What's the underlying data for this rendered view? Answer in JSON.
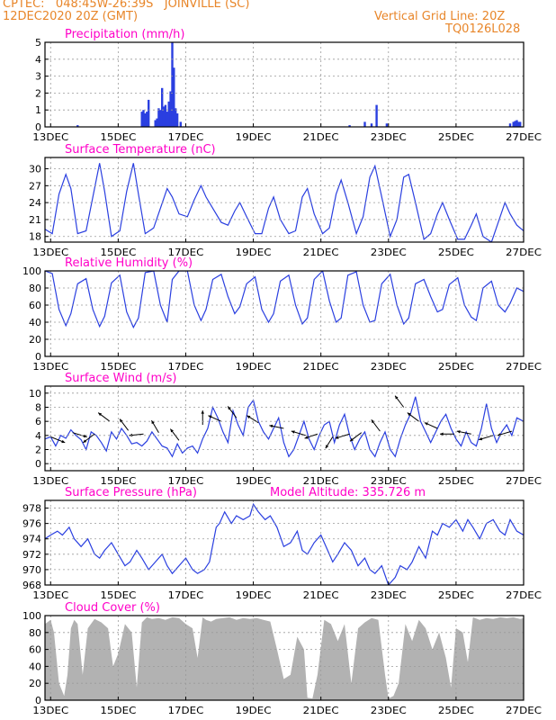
{
  "header": {
    "line1_left": "CPTEC:   048:45W-26:39S   JOINVILLE (SC)",
    "line2_left": "12DEC2020 20Z (GMT)",
    "line1_right": "Vertical Grid Line: 20Z",
    "line2_right": "TQ0126L028",
    "color": "#e8862a"
  },
  "colors": {
    "title": "#ff00c8",
    "series": "#2a3fe0",
    "cloud": "#b2b2b2",
    "grid": "#9a9a9a",
    "arrow": "#000000"
  },
  "chart_data": [
    {
      "id": "precip",
      "type": "bar",
      "title": "Precipitation (mm/h)",
      "xlim": [
        12.8333,
        27.0
      ],
      "xticks": [
        13,
        15,
        17,
        19,
        21,
        23,
        25,
        27
      ],
      "xtick_labels": [
        "13DEC",
        "15DEC",
        "17DEC",
        "19DEC",
        "21DEC",
        "23DEC",
        "25DEC",
        "27DEC"
      ],
      "ylim": [
        0,
        5
      ],
      "yticks": [
        0,
        1,
        2,
        3,
        4,
        5
      ],
      "ytick_labels": [
        "0",
        "1",
        "2",
        "3",
        "4",
        "5"
      ],
      "x": [
        13.8,
        15.7,
        15.75,
        15.8,
        15.85,
        15.9,
        16.1,
        16.15,
        16.2,
        16.25,
        16.3,
        16.35,
        16.4,
        16.45,
        16.5,
        16.55,
        16.6,
        16.65,
        16.7,
        16.75,
        16.85,
        21.85,
        22.3,
        22.5,
        22.65,
        22.95,
        26.6,
        26.7,
        26.75,
        26.8,
        26.85,
        26.9
      ],
      "values": [
        0.1,
        0.9,
        1.0,
        0.8,
        0.9,
        1.6,
        0.4,
        0.5,
        1.1,
        1.0,
        2.3,
        1.2,
        1.3,
        0.9,
        1.5,
        2.1,
        5.0,
        3.5,
        1.1,
        0.8,
        0.3,
        0.1,
        0.3,
        0.2,
        1.3,
        0.2,
        0.2,
        0.3,
        0.35,
        0.4,
        0.3,
        0.3
      ]
    },
    {
      "id": "temp",
      "type": "line",
      "title": "Surface Temperature (nC)",
      "xlim": [
        12.8333,
        27.0
      ],
      "xticks": [
        13,
        15,
        17,
        19,
        21,
        23,
        25,
        27
      ],
      "xtick_labels": [
        "13DEC",
        "15DEC",
        "17DEC",
        "19DEC",
        "21DEC",
        "23DEC",
        "25DEC",
        "27DEC"
      ],
      "ylim": [
        17,
        32
      ],
      "yticks": [
        18,
        21,
        24,
        27,
        30
      ],
      "ytick_labels": [
        "18",
        "21",
        "24",
        "27",
        "30"
      ],
      "x": [
        12.83,
        13.05,
        13.25,
        13.45,
        13.6,
        13.8,
        14.05,
        14.25,
        14.45,
        14.6,
        14.8,
        15.05,
        15.25,
        15.45,
        15.6,
        15.8,
        16.05,
        16.25,
        16.45,
        16.6,
        16.8,
        17.05,
        17.25,
        17.45,
        17.6,
        17.8,
        18.05,
        18.25,
        18.45,
        18.6,
        18.8,
        19.05,
        19.25,
        19.45,
        19.6,
        19.8,
        20.05,
        20.25,
        20.45,
        20.6,
        20.8,
        21.05,
        21.25,
        21.45,
        21.6,
        21.8,
        22.05,
        22.25,
        22.45,
        22.6,
        22.8,
        23.05,
        23.25,
        23.45,
        23.6,
        23.8,
        24.05,
        24.25,
        24.45,
        24.6,
        24.8,
        25.05,
        25.25,
        25.45,
        25.6,
        25.8,
        26.05,
        26.25,
        26.45,
        26.6,
        26.8,
        27.0
      ],
      "values": [
        19.3,
        18.5,
        25.5,
        29.0,
        26.5,
        18.5,
        19.0,
        25.0,
        31.0,
        26.0,
        18.0,
        19.0,
        26.0,
        31.0,
        25.5,
        18.5,
        19.5,
        23.0,
        26.5,
        25.0,
        22.0,
        21.5,
        24.5,
        27.0,
        25.0,
        23.0,
        20.5,
        20.0,
        22.5,
        24.0,
        21.5,
        18.5,
        18.5,
        23.0,
        25.0,
        21.0,
        18.5,
        19.0,
        25.0,
        26.5,
        22.0,
        18.5,
        19.5,
        25.5,
        28.0,
        24.0,
        18.5,
        21.5,
        28.5,
        30.5,
        25.0,
        18.0,
        21.0,
        28.5,
        29.0,
        24.0,
        17.5,
        18.5,
        22.0,
        24.0,
        21.0,
        17.5,
        17.5,
        20.0,
        22.0,
        18.0,
        17.0,
        20.5,
        24.0,
        22.0,
        20.0,
        19.0
      ]
    },
    {
      "id": "rh",
      "type": "line",
      "title": "Relative Humidity (%)",
      "xlim": [
        12.8333,
        27.0
      ],
      "xticks": [
        13,
        15,
        17,
        19,
        21,
        23,
        25,
        27
      ],
      "xtick_labels": [
        "13DEC",
        "15DEC",
        "17DEC",
        "19DEC",
        "21DEC",
        "23DEC",
        "25DEC",
        "27DEC"
      ],
      "ylim": [
        0,
        100
      ],
      "yticks": [
        0,
        20,
        40,
        60,
        80,
        100
      ],
      "ytick_labels": [
        "0",
        "20",
        "40",
        "60",
        "80",
        "100"
      ],
      "x": [
        12.83,
        13.05,
        13.25,
        13.45,
        13.6,
        13.8,
        14.05,
        14.25,
        14.45,
        14.6,
        14.8,
        15.05,
        15.25,
        15.45,
        15.6,
        15.8,
        16.05,
        16.25,
        16.45,
        16.6,
        16.8,
        17.05,
        17.25,
        17.45,
        17.6,
        17.8,
        18.05,
        18.25,
        18.45,
        18.6,
        18.8,
        19.05,
        19.25,
        19.45,
        19.6,
        19.8,
        20.05,
        20.25,
        20.45,
        20.6,
        20.8,
        21.05,
        21.25,
        21.45,
        21.6,
        21.8,
        22.05,
        22.25,
        22.45,
        22.6,
        22.8,
        23.05,
        23.25,
        23.45,
        23.6,
        23.8,
        24.05,
        24.25,
        24.45,
        24.6,
        24.8,
        25.05,
        25.25,
        25.45,
        25.6,
        25.8,
        26.05,
        26.25,
        26.45,
        26.6,
        26.8,
        27.0
      ],
      "values": [
        100,
        97,
        55,
        36,
        50,
        85,
        91,
        55,
        35,
        47,
        86,
        95,
        52,
        34,
        45,
        98,
        100,
        60,
        40,
        90,
        100,
        100,
        60,
        42,
        55,
        90,
        96,
        70,
        50,
        58,
        85,
        93,
        55,
        40,
        50,
        88,
        95,
        60,
        38,
        45,
        90,
        100,
        65,
        40,
        45,
        95,
        99,
        60,
        40,
        42,
        85,
        96,
        60,
        38,
        45,
        85,
        90,
        70,
        52,
        55,
        84,
        92,
        60,
        46,
        42,
        80,
        88,
        60,
        52,
        62,
        80,
        76
      ]
    },
    {
      "id": "wind",
      "type": "line",
      "title": "Surface Wind (m/s)",
      "xlim": [
        12.8333,
        27.0
      ],
      "xticks": [
        13,
        15,
        17,
        19,
        21,
        23,
        25,
        27
      ],
      "xtick_labels": [
        "13DEC",
        "15DEC",
        "17DEC",
        "19DEC",
        "21DEC",
        "23DEC",
        "25DEC",
        "27DEC"
      ],
      "ylim": [
        -1,
        11
      ],
      "yticks": [
        0,
        2,
        4,
        6,
        8,
        10
      ],
      "ytick_labels": [
        "0",
        "2",
        "4",
        "6",
        "8",
        "10"
      ],
      "x": [
        12.83,
        13.0,
        13.15,
        13.3,
        13.45,
        13.6,
        13.75,
        13.9,
        14.05,
        14.2,
        14.35,
        14.5,
        14.65,
        14.8,
        14.95,
        15.1,
        15.25,
        15.4,
        15.55,
        15.7,
        15.85,
        16.0,
        16.15,
        16.3,
        16.45,
        16.6,
        16.75,
        16.9,
        17.05,
        17.2,
        17.35,
        17.5,
        17.65,
        17.8,
        17.95,
        18.1,
        18.25,
        18.4,
        18.55,
        18.7,
        18.85,
        19.0,
        19.15,
        19.3,
        19.45,
        19.6,
        19.75,
        19.9,
        20.05,
        20.2,
        20.35,
        20.5,
        20.65,
        20.8,
        20.95,
        21.1,
        21.25,
        21.4,
        21.55,
        21.7,
        21.85,
        22.0,
        22.15,
        22.3,
        22.45,
        22.6,
        22.75,
        22.9,
        23.05,
        23.2,
        23.35,
        23.5,
        23.65,
        23.8,
        23.95,
        24.1,
        24.25,
        24.4,
        24.55,
        24.7,
        24.85,
        25.0,
        25.15,
        25.3,
        25.45,
        25.6,
        25.75,
        25.9,
        26.05,
        26.2,
        26.35,
        26.5,
        26.65,
        26.8,
        27.0
      ],
      "values": [
        3.5,
        3.8,
        2.5,
        4.0,
        3.6,
        4.8,
        4.0,
        3.4,
        2.0,
        4.5,
        4.0,
        3.0,
        1.8,
        4.5,
        3.5,
        5.0,
        4.0,
        2.8,
        3.0,
        2.5,
        3.2,
        4.5,
        3.5,
        2.5,
        2.2,
        1.0,
        2.8,
        1.5,
        2.2,
        2.5,
        1.5,
        3.5,
        5.0,
        8.0,
        6.5,
        4.5,
        3.0,
        7.5,
        5.5,
        4.0,
        8.0,
        9.0,
        6.0,
        4.5,
        3.5,
        5.0,
        6.5,
        3.0,
        1.0,
        2.0,
        4.0,
        6.0,
        3.5,
        2.0,
        4.0,
        5.5,
        6.0,
        3.0,
        5.5,
        7.0,
        4.0,
        2.0,
        3.5,
        4.5,
        2.0,
        1.0,
        3.0,
        4.5,
        2.0,
        1.0,
        3.5,
        5.5,
        7.0,
        9.5,
        6.0,
        4.5,
        3.0,
        4.5,
        6.0,
        7.0,
        5.0,
        3.5,
        2.5,
        4.5,
        3.0,
        2.5,
        5.0,
        8.5,
        5.0,
        3.0,
        4.5,
        5.5,
        4.0,
        6.5,
        6.0
      ],
      "arrows": [
        {
          "x": 13.0,
          "y": 3.8,
          "u": 1.0,
          "v": -0.4
        },
        {
          "x": 13.65,
          "y": 4.4,
          "u": 1.0,
          "v": -0.3
        },
        {
          "x": 14.3,
          "y": 4.2,
          "u": -0.8,
          "v": -0.6
        },
        {
          "x": 14.75,
          "y": 6.0,
          "u": -0.8,
          "v": 0.6
        },
        {
          "x": 15.3,
          "y": 4.7,
          "u": -0.6,
          "v": 0.8
        },
        {
          "x": 15.75,
          "y": 4.2,
          "u": -1.0,
          "v": -0.1
        },
        {
          "x": 16.2,
          "y": 4.4,
          "u": -0.5,
          "v": 0.85
        },
        {
          "x": 16.8,
          "y": 3.3,
          "u": -0.6,
          "v": 0.8
        },
        {
          "x": 17.5,
          "y": 5.5,
          "u": 0.0,
          "v": 1.0
        },
        {
          "x": 18.05,
          "y": 6.0,
          "u": -0.9,
          "v": 0.4
        },
        {
          "x": 18.5,
          "y": 6.5,
          "u": -0.6,
          "v": 0.8
        },
        {
          "x": 19.15,
          "y": 5.8,
          "u": -0.8,
          "v": 0.5
        },
        {
          "x": 19.9,
          "y": 5.0,
          "u": -1.0,
          "v": 0.2
        },
        {
          "x": 20.55,
          "y": 4.0,
          "u": -1.0,
          "v": 0.3
        },
        {
          "x": 20.9,
          "y": 4.2,
          "u": -0.9,
          "v": -0.3
        },
        {
          "x": 21.35,
          "y": 3.8,
          "u": -0.5,
          "v": -0.8
        },
        {
          "x": 21.85,
          "y": 4.2,
          "u": -1.0,
          "v": -0.3
        },
        {
          "x": 22.2,
          "y": 4.4,
          "u": -0.8,
          "v": -0.6
        },
        {
          "x": 22.75,
          "y": 4.6,
          "u": -0.6,
          "v": 0.8
        },
        {
          "x": 23.45,
          "y": 8.0,
          "u": -0.6,
          "v": 0.8
        },
        {
          "x": 23.9,
          "y": 6.0,
          "u": -0.8,
          "v": 0.6
        },
        {
          "x": 24.45,
          "y": 5.0,
          "u": -0.9,
          "v": 0.4
        },
        {
          "x": 24.95,
          "y": 4.2,
          "u": -1.0,
          "v": 0.0
        },
        {
          "x": 25.45,
          "y": 4.2,
          "u": -1.0,
          "v": 0.2
        },
        {
          "x": 26.1,
          "y": 4.0,
          "u": -1.0,
          "v": -0.3
        },
        {
          "x": 26.65,
          "y": 4.6,
          "u": -1.0,
          "v": -0.3
        }
      ]
    },
    {
      "id": "pressure",
      "type": "line",
      "title": "Surface Pressure (hPa)",
      "annotation": "Model Altitude: 335.726 m",
      "xlim": [
        12.8333,
        27.0
      ],
      "xticks": [
        13,
        15,
        17,
        19,
        21,
        23,
        25,
        27
      ],
      "xtick_labels": [
        "13DEC",
        "15DEC",
        "17DEC",
        "19DEC",
        "21DEC",
        "23DEC",
        "25DEC",
        "27DEC"
      ],
      "ylim": [
        968,
        979
      ],
      "yticks": [
        968,
        970,
        972,
        974,
        976,
        978
      ],
      "ytick_labels": [
        "968",
        "970",
        "972",
        "974",
        "976",
        "978"
      ],
      "x": [
        12.83,
        13.0,
        13.2,
        13.35,
        13.55,
        13.7,
        13.9,
        14.1,
        14.3,
        14.45,
        14.6,
        14.8,
        15.0,
        15.2,
        15.35,
        15.55,
        15.7,
        15.9,
        16.1,
        16.3,
        16.45,
        16.6,
        16.8,
        17.0,
        17.2,
        17.35,
        17.55,
        17.7,
        17.9,
        18.0,
        18.15,
        18.35,
        18.5,
        18.7,
        18.9,
        19.0,
        19.15,
        19.35,
        19.5,
        19.7,
        19.9,
        20.1,
        20.3,
        20.45,
        20.6,
        20.8,
        21.0,
        21.2,
        21.35,
        21.5,
        21.7,
        21.9,
        22.1,
        22.3,
        22.45,
        22.6,
        22.8,
        23.0,
        23.2,
        23.35,
        23.55,
        23.7,
        23.9,
        24.1,
        24.3,
        24.45,
        24.6,
        24.8,
        25.0,
        25.2,
        25.35,
        25.5,
        25.7,
        25.9,
        26.1,
        26.3,
        26.45,
        26.6,
        26.8,
        27.0
      ],
      "values": [
        974.0,
        974.5,
        975.0,
        974.5,
        975.5,
        974.0,
        973.0,
        974.0,
        972.0,
        971.5,
        972.5,
        973.5,
        972.0,
        970.5,
        971.0,
        972.5,
        971.5,
        970.0,
        971.0,
        972.0,
        970.5,
        969.5,
        970.5,
        971.5,
        970.0,
        969.5,
        970.0,
        971.0,
        975.5,
        976.0,
        977.5,
        976.0,
        977.0,
        976.5,
        977.0,
        978.5,
        977.5,
        976.5,
        977.0,
        975.5,
        973.0,
        973.5,
        975.0,
        972.5,
        972.0,
        973.5,
        974.5,
        972.5,
        971.0,
        972.0,
        973.5,
        972.5,
        970.5,
        971.5,
        970.0,
        969.5,
        970.5,
        968.0,
        969.0,
        970.5,
        970.0,
        971.0,
        973.0,
        971.5,
        975.0,
        974.5,
        976.0,
        975.5,
        976.5,
        975.0,
        976.5,
        975.5,
        974.0,
        976.0,
        976.5,
        975.0,
        974.5,
        976.5,
        975.0,
        974.5
      ]
    },
    {
      "id": "cloud",
      "type": "area",
      "title": "Cloud Cover (%)",
      "xlim": [
        12.8333,
        27.0
      ],
      "xticks": [
        13,
        15,
        17,
        19,
        21,
        23,
        25,
        27
      ],
      "xtick_labels": [
        "13DEC",
        "15DEC",
        "17DEC",
        "19DEC",
        "21DEC",
        "23DEC",
        "25DEC",
        "27DEC"
      ],
      "ylim": [
        0,
        100
      ],
      "yticks": [
        0,
        20,
        40,
        60,
        80,
        100
      ],
      "ytick_labels": [
        "0",
        "20",
        "40",
        "60",
        "80",
        "100"
      ],
      "x": [
        12.83,
        13.0,
        13.1,
        13.25,
        13.4,
        13.5,
        13.6,
        13.7,
        13.8,
        13.95,
        14.1,
        14.3,
        14.5,
        14.7,
        14.85,
        15.0,
        15.2,
        15.4,
        15.55,
        15.7,
        15.85,
        16.0,
        16.2,
        16.4,
        16.6,
        16.8,
        17.0,
        17.2,
        17.35,
        17.5,
        17.6,
        17.75,
        17.9,
        18.1,
        18.3,
        18.5,
        18.7,
        18.9,
        19.1,
        19.3,
        19.5,
        19.7,
        19.9,
        20.1,
        20.3,
        20.5,
        20.6,
        20.75,
        20.9,
        21.1,
        21.3,
        21.5,
        21.7,
        21.9,
        22.1,
        22.3,
        22.5,
        22.7,
        22.9,
        23.0,
        23.15,
        23.3,
        23.5,
        23.7,
        23.9,
        24.1,
        24.3,
        24.5,
        24.7,
        24.85,
        25.0,
        25.2,
        25.35,
        25.5,
        25.7,
        25.9,
        26.1,
        26.3,
        26.5,
        26.7,
        26.9,
        27.0
      ],
      "values": [
        90,
        95,
        80,
        20,
        5,
        30,
        85,
        95,
        90,
        30,
        85,
        96,
        92,
        85,
        40,
        55,
        90,
        80,
        15,
        92,
        98,
        96,
        97,
        95,
        98,
        97,
        90,
        85,
        50,
        98,
        95,
        93,
        96,
        97,
        98,
        95,
        97,
        96,
        97,
        95,
        93,
        60,
        25,
        30,
        75,
        60,
        3,
        2,
        30,
        95,
        90,
        70,
        90,
        20,
        85,
        92,
        97,
        95,
        30,
        2,
        5,
        20,
        90,
        70,
        95,
        85,
        60,
        80,
        50,
        15,
        85,
        80,
        45,
        98,
        95,
        97,
        96,
        98,
        97,
        98,
        96,
        97
      ]
    }
  ]
}
